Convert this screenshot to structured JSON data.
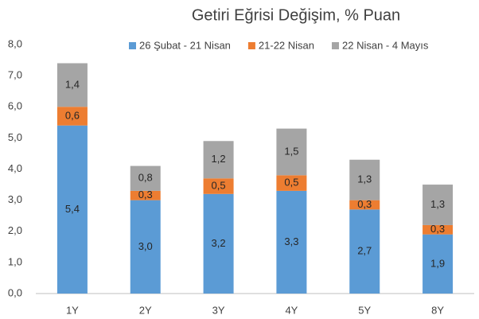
{
  "chart_data": {
    "type": "stacked_bar",
    "title": "Getiri Eğrisi Değişim, % Puan",
    "categories": [
      "1Y",
      "2Y",
      "3Y",
      "4Y",
      "5Y",
      "8Y"
    ],
    "series": [
      {
        "name": "26 Şubat - 21 Nisan",
        "color": "#5b9bd5",
        "values": [
          5.4,
          3.0,
          3.2,
          3.3,
          2.7,
          1.9
        ],
        "value_labels": [
          "5,4",
          "3,0",
          "3,2",
          "3,3",
          "2,7",
          "1,9"
        ]
      },
      {
        "name": "21-22 Nisan",
        "color": "#ed7d31",
        "values": [
          0.6,
          0.3,
          0.5,
          0.5,
          0.3,
          0.3
        ],
        "value_labels": [
          "0,6",
          "0,3",
          "0,5",
          "0,5",
          "0,3",
          "0,3"
        ]
      },
      {
        "name": "22 Nisan - 4 Mayıs",
        "color": "#a5a5a5",
        "values": [
          1.4,
          0.8,
          1.2,
          1.5,
          1.3,
          1.3
        ],
        "value_labels": [
          "1,4",
          "0,8",
          "1,2",
          "1,5",
          "1,3",
          "1,3"
        ]
      }
    ],
    "ylim": [
      0,
      8
    ],
    "yticks": [
      {
        "value": 0,
        "label": "0,0"
      },
      {
        "value": 1,
        "label": "1,0"
      },
      {
        "value": 2,
        "label": "2,0"
      },
      {
        "value": 3,
        "label": "3,0"
      },
      {
        "value": 4,
        "label": "4,0"
      },
      {
        "value": 5,
        "label": "5,0"
      },
      {
        "value": 6,
        "label": "6,0"
      },
      {
        "value": 7,
        "label": "7,0"
      },
      {
        "value": 8,
        "label": "8,0"
      }
    ],
    "legend": "top"
  }
}
